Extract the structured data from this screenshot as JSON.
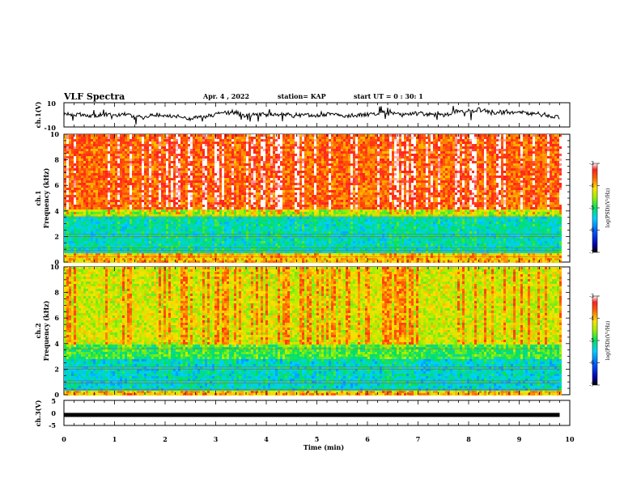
{
  "header": {
    "title": "VLF Spectra",
    "date": "Apr. 4 , 2022",
    "station": "station= KAP",
    "start_ut": "start UT =  0 : 30: 1"
  },
  "chart_data": [
    {
      "type": "line",
      "ylabel": "ch.1(V)",
      "ylim": [
        -10,
        10
      ],
      "yticks": [
        "10",
        "-10"
      ],
      "xlim": [
        0,
        10
      ]
    },
    {
      "type": "heatmap",
      "ylabel": "ch.1\nFrequency (kHz)",
      "ylabel_lines": [
        "ch.1",
        "Frequency (kHz)"
      ],
      "ylim": [
        0,
        10
      ],
      "yticks": [
        "0",
        "2",
        "4",
        "6",
        "8",
        "10"
      ],
      "xlim": [
        0,
        9.8
      ],
      "colorbar": {
        "label": "log(PSD)(V²/Hz)",
        "range": [
          -7,
          -3
        ],
        "ticks": [
          "-3",
          "-4",
          "-5",
          "-6",
          "-7"
        ]
      },
      "bands": [
        {
          "from_khz": 0,
          "to_khz": 0.8,
          "level": -4.0
        },
        {
          "from_khz": 0.8,
          "to_khz": 3.6,
          "level": -5.3
        },
        {
          "from_khz": 3.6,
          "to_khz": 4.2,
          "level": -4.5
        },
        {
          "from_khz": 4.2,
          "to_khz": 10,
          "level": -3.6
        }
      ]
    },
    {
      "type": "heatmap",
      "ylabel": "ch.2\nFrequency (kHz)",
      "ylabel_lines": [
        "ch.2",
        "Frequency (kHz)"
      ],
      "ylim": [
        0,
        10
      ],
      "yticks": [
        "0",
        "2",
        "4",
        "6",
        "8",
        "10"
      ],
      "xlim": [
        0,
        9.8
      ],
      "colorbar": {
        "label": "log(PSD)(V²/Hz)",
        "range": [
          -7,
          -3
        ],
        "ticks": [
          "-3",
          "-4",
          "-5",
          "-6",
          "-7"
        ]
      },
      "bands": [
        {
          "from_khz": 0,
          "to_khz": 0.4,
          "level": -4.0
        },
        {
          "from_khz": 0.4,
          "to_khz": 2.8,
          "level": -5.4
        },
        {
          "from_khz": 2.8,
          "to_khz": 4.0,
          "level": -4.9
        },
        {
          "from_khz": 4.0,
          "to_khz": 10,
          "level": -4.3
        }
      ]
    },
    {
      "type": "line",
      "ylabel": "ch.3(V)",
      "ylim": [
        -5,
        5
      ],
      "yticks": [
        "5",
        "0",
        "-5"
      ],
      "xlim": [
        0,
        10
      ],
      "level_v": -0.8
    }
  ],
  "xaxis": {
    "label": "Time (min)",
    "ticks": [
      "0",
      "1",
      "2",
      "3",
      "4",
      "5",
      "6",
      "7",
      "8",
      "9",
      "10"
    ],
    "xlim": [
      0,
      10
    ]
  }
}
